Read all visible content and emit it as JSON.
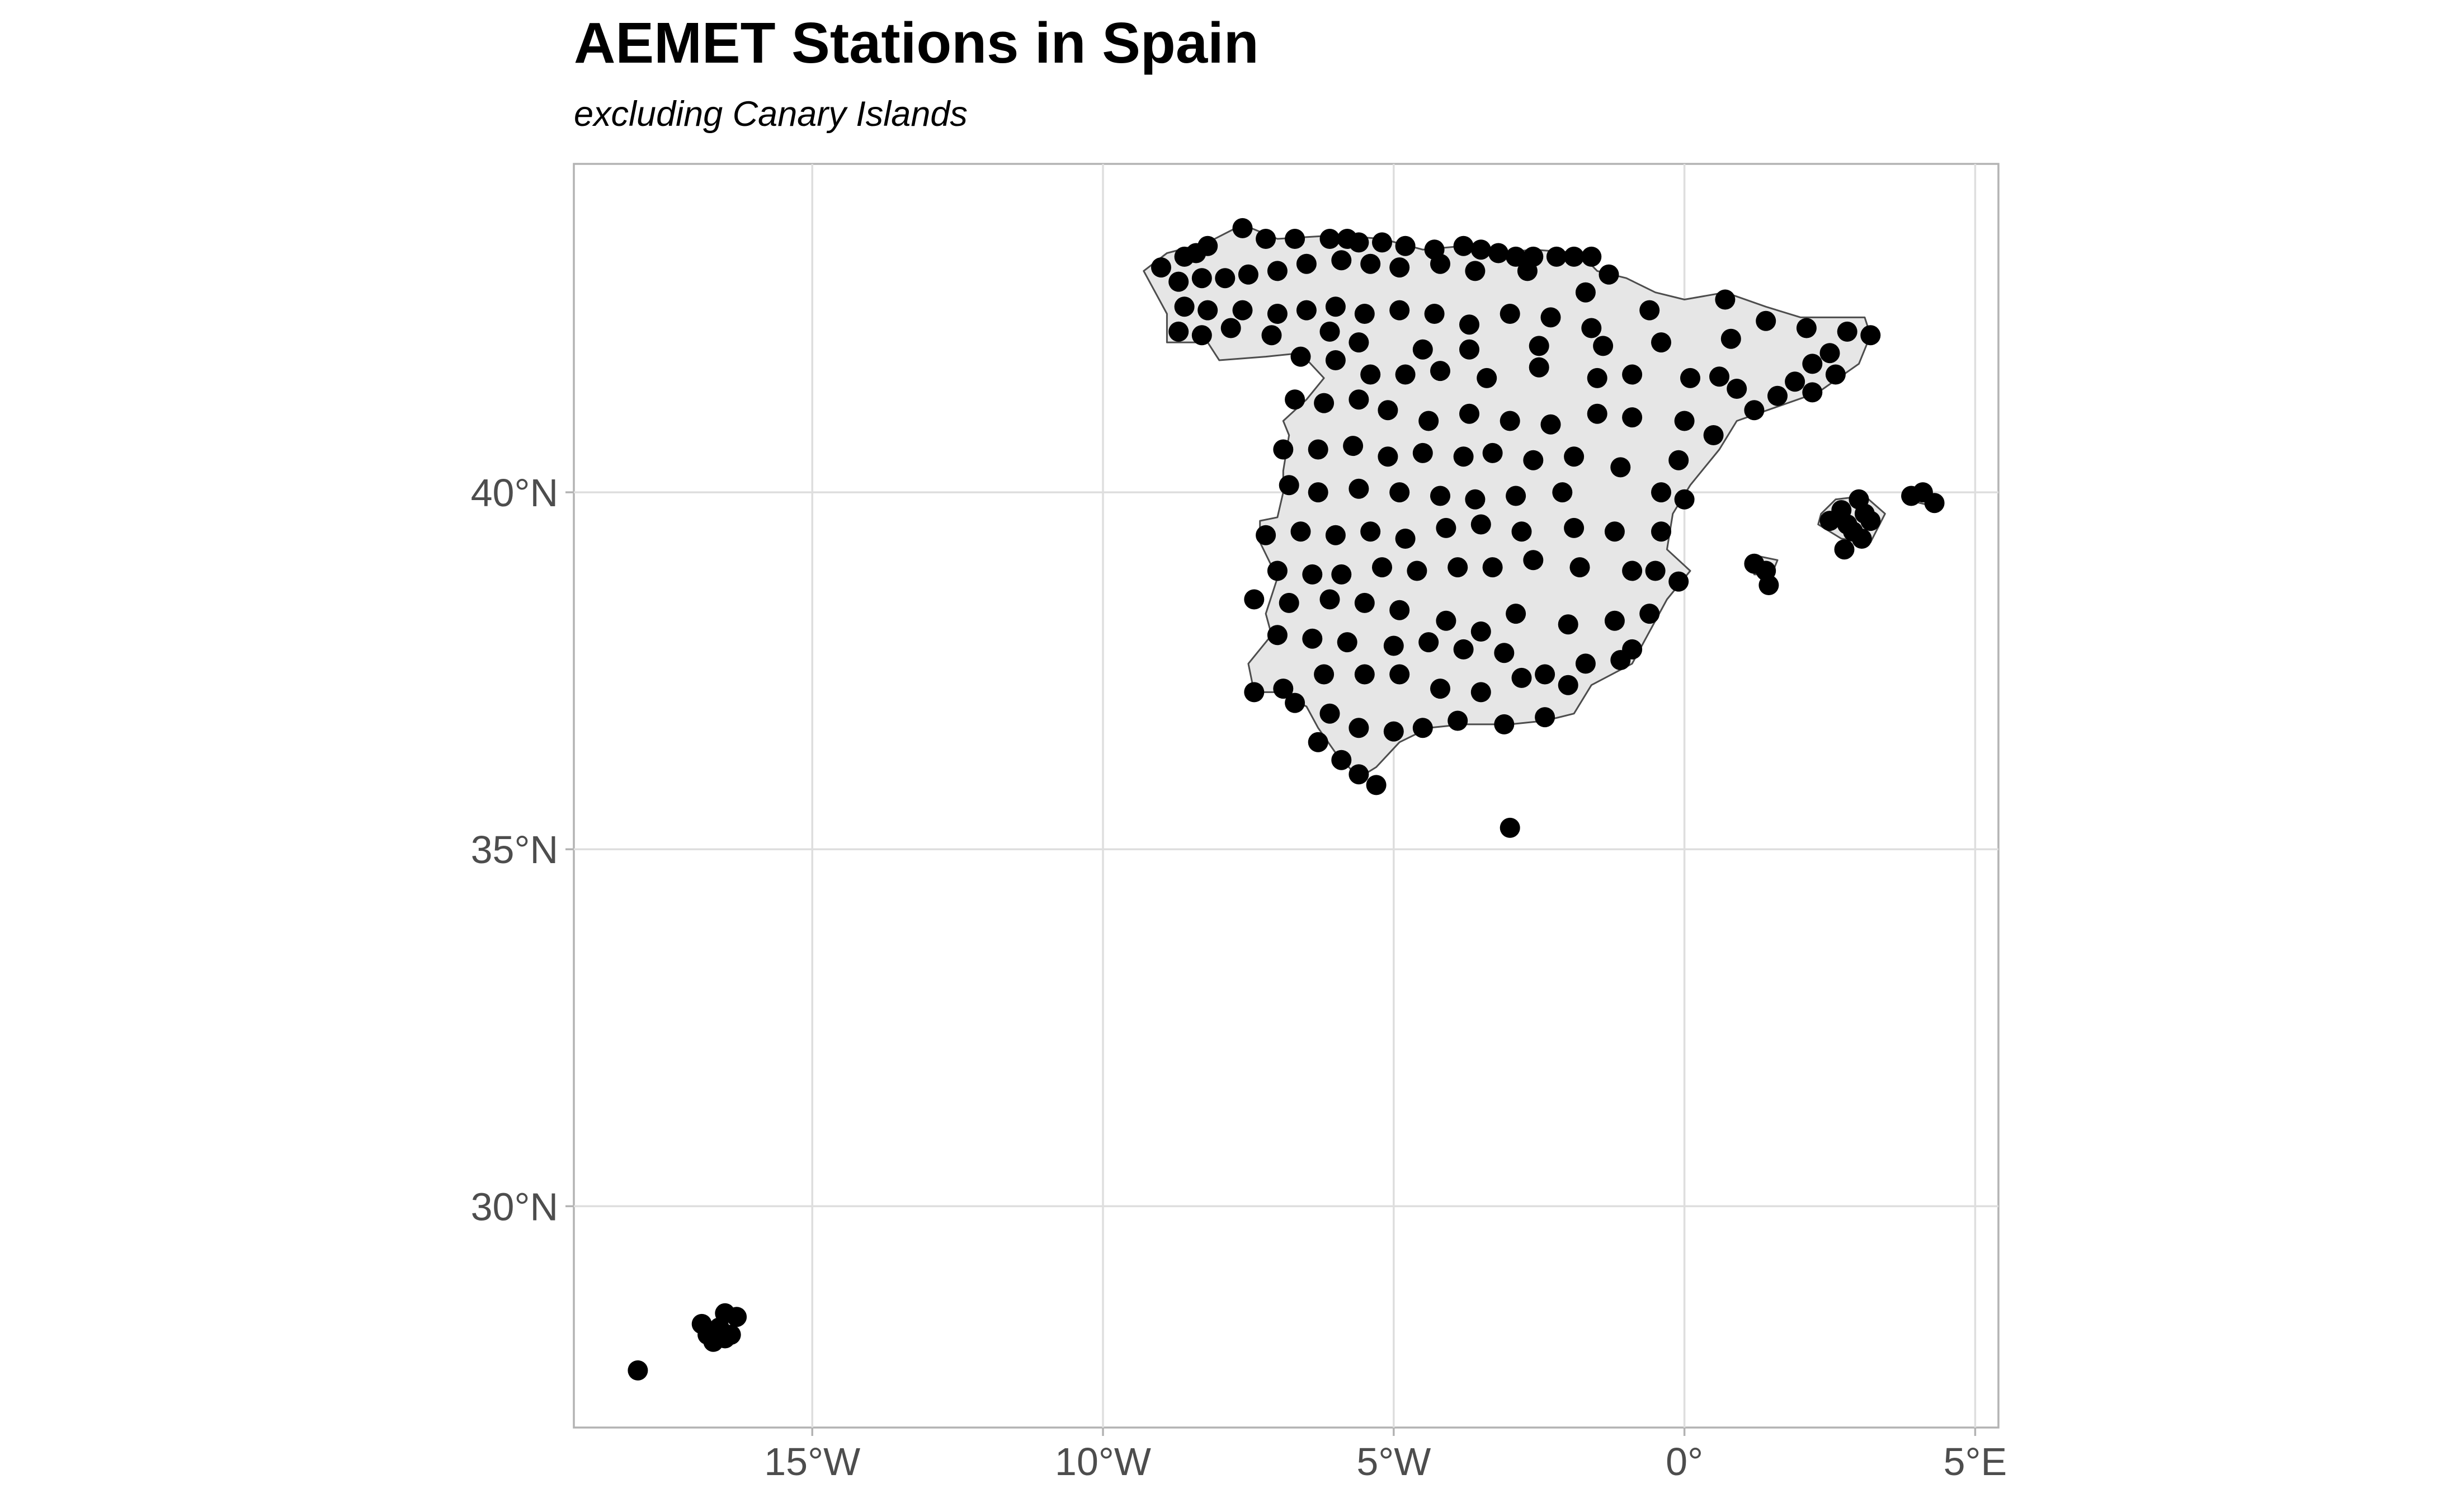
{
  "chart_data": {
    "type": "scatter",
    "title": "AEMET Stations in Spain",
    "subtitle": "excluding Canary Islands",
    "xlabel": "",
    "ylabel": "",
    "x_unit": "degrees longitude",
    "y_unit": "degrees latitude",
    "xlim": [
      -19.1,
      5.4
    ],
    "ylim": [
      26.9,
      44.6
    ],
    "x_ticks": [
      {
        "value": -15,
        "label": "15°W"
      },
      {
        "value": -10,
        "label": "10°W"
      },
      {
        "value": -5,
        "label": "5°W"
      },
      {
        "value": 0,
        "label": "0°"
      },
      {
        "value": 5,
        "label": "5°E"
      }
    ],
    "y_ticks": [
      {
        "value": 30,
        "label": "30°N"
      },
      {
        "value": 35,
        "label": "35°N"
      },
      {
        "value": 40,
        "label": "40°N"
      }
    ],
    "grid": true,
    "legend": "none",
    "colors": {
      "points": "#000000",
      "land_fill": "#e6e6e6",
      "land_outline": "#4d4d4d",
      "grid": "#dedede",
      "panel_border": "#b3b3b3",
      "tick_text": "#4d4d4d"
    },
    "basemap": {
      "mainland": [
        [
          -9.3,
          43.1
        ],
        [
          -8.9,
          43.35
        ],
        [
          -8.2,
          43.5
        ],
        [
          -7.6,
          43.75
        ],
        [
          -7.0,
          43.55
        ],
        [
          -6.0,
          43.6
        ],
        [
          -5.2,
          43.55
        ],
        [
          -4.5,
          43.4
        ],
        [
          -3.8,
          43.45
        ],
        [
          -3.2,
          43.35
        ],
        [
          -2.6,
          43.4
        ],
        [
          -1.8,
          43.35
        ],
        [
          -1.5,
          43.1
        ],
        [
          -1.0,
          43.0
        ],
        [
          -0.5,
          42.8
        ],
        [
          0.0,
          42.7
        ],
        [
          0.7,
          42.8
        ],
        [
          1.4,
          42.6
        ],
        [
          2.0,
          42.45
        ],
        [
          3.1,
          42.45
        ],
        [
          3.2,
          42.2
        ],
        [
          3.0,
          41.8
        ],
        [
          2.3,
          41.4
        ],
        [
          1.6,
          41.2
        ],
        [
          0.9,
          41.0
        ],
        [
          0.6,
          40.6
        ],
        [
          0.1,
          40.1
        ],
        [
          -0.2,
          39.7
        ],
        [
          -0.3,
          39.2
        ],
        [
          0.1,
          38.9
        ],
        [
          -0.3,
          38.5
        ],
        [
          -0.7,
          37.9
        ],
        [
          -0.9,
          37.6
        ],
        [
          -1.6,
          37.3
        ],
        [
          -1.9,
          36.9
        ],
        [
          -2.4,
          36.8
        ],
        [
          -3.0,
          36.75
        ],
        [
          -3.8,
          36.75
        ],
        [
          -4.4,
          36.7
        ],
        [
          -4.9,
          36.5
        ],
        [
          -5.3,
          36.15
        ],
        [
          -5.6,
          36.0
        ],
        [
          -6.0,
          36.35
        ],
        [
          -6.3,
          36.7
        ],
        [
          -6.5,
          37.0
        ],
        [
          -7.0,
          37.2
        ],
        [
          -7.4,
          37.2
        ],
        [
          -7.5,
          37.6
        ],
        [
          -7.1,
          38.0
        ],
        [
          -7.2,
          38.3
        ],
        [
          -7.0,
          38.8
        ],
        [
          -7.3,
          39.3
        ],
        [
          -7.3,
          39.6
        ],
        [
          -7.0,
          39.65
        ],
        [
          -6.9,
          40.0
        ],
        [
          -6.9,
          40.3
        ],
        [
          -6.8,
          40.8
        ],
        [
          -6.9,
          41.0
        ],
        [
          -6.5,
          41.3
        ],
        [
          -6.2,
          41.6
        ],
        [
          -6.6,
          41.95
        ],
        [
          -7.2,
          41.9
        ],
        [
          -8.0,
          41.85
        ],
        [
          -8.2,
          42.1
        ],
        [
          -8.9,
          42.1
        ],
        [
          -8.9,
          42.5
        ],
        [
          -9.1,
          42.8
        ],
        [
          -9.3,
          43.1
        ]
      ],
      "islands": [
        [
          [
            1.2,
            38.85
          ],
          [
            1.5,
            38.85
          ],
          [
            1.6,
            39.05
          ],
          [
            1.3,
            39.1
          ],
          [
            1.2,
            38.95
          ]
        ],
        [
          [
            2.3,
            39.55
          ],
          [
            2.7,
            39.35
          ],
          [
            3.2,
            39.3
          ],
          [
            3.45,
            39.7
          ],
          [
            3.1,
            39.95
          ],
          [
            2.6,
            39.9
          ],
          [
            2.35,
            39.7
          ]
        ],
        [
          [
            3.8,
            39.9
          ],
          [
            4.3,
            39.8
          ],
          [
            4.3,
            39.95
          ],
          [
            3.85,
            40.05
          ]
        ]
      ]
    },
    "stations": [
      [
        -8.4,
        43.35
      ],
      [
        -8.6,
        43.3
      ],
      [
        -9.0,
        43.15
      ],
      [
        -8.2,
        43.45
      ],
      [
        -7.6,
        43.7
      ],
      [
        -7.2,
        43.55
      ],
      [
        -6.7,
        43.55
      ],
      [
        -6.1,
        43.55
      ],
      [
        -5.8,
        43.55
      ],
      [
        -5.6,
        43.5
      ],
      [
        -5.2,
        43.5
      ],
      [
        -4.8,
        43.45
      ],
      [
        -4.3,
        43.4
      ],
      [
        -3.8,
        43.45
      ],
      [
        -3.5,
        43.4
      ],
      [
        -3.2,
        43.35
      ],
      [
        -2.9,
        43.3
      ],
      [
        -2.6,
        43.3
      ],
      [
        -2.2,
        43.3
      ],
      [
        -1.9,
        43.3
      ],
      [
        -1.6,
        43.3
      ],
      [
        -8.7,
        42.95
      ],
      [
        -8.3,
        43.0
      ],
      [
        -7.9,
        43.0
      ],
      [
        -7.5,
        43.05
      ],
      [
        -7.0,
        43.1
      ],
      [
        -6.5,
        43.2
      ],
      [
        -5.9,
        43.25
      ],
      [
        -5.4,
        43.2
      ],
      [
        -4.9,
        43.15
      ],
      [
        -4.2,
        43.2
      ],
      [
        -3.6,
        43.1
      ],
      [
        -2.7,
        43.1
      ],
      [
        -1.7,
        42.8
      ],
      [
        -1.3,
        43.05
      ],
      [
        -8.6,
        42.6
      ],
      [
        -8.2,
        42.55
      ],
      [
        -7.6,
        42.55
      ],
      [
        -7.0,
        42.5
      ],
      [
        -6.5,
        42.55
      ],
      [
        -6.0,
        42.6
      ],
      [
        -5.5,
        42.5
      ],
      [
        -4.9,
        42.55
      ],
      [
        -4.3,
        42.5
      ],
      [
        -3.7,
        42.35
      ],
      [
        -3.0,
        42.5
      ],
      [
        -2.3,
        42.45
      ],
      [
        -1.6,
        42.3
      ],
      [
        -0.6,
        42.55
      ],
      [
        0.7,
        42.7
      ],
      [
        -8.7,
        42.25
      ],
      [
        -8.3,
        42.2
      ],
      [
        -7.8,
        42.3
      ],
      [
        -7.1,
        42.2
      ],
      [
        -6.1,
        42.25
      ],
      [
        -5.6,
        42.1
      ],
      [
        -4.5,
        42.0
      ],
      [
        -3.7,
        42.0
      ],
      [
        -2.5,
        42.05
      ],
      [
        -1.4,
        42.05
      ],
      [
        -0.4,
        42.1
      ],
      [
        0.8,
        42.15
      ],
      [
        1.4,
        42.4
      ],
      [
        2.1,
        42.3
      ],
      [
        2.8,
        42.25
      ],
      [
        3.2,
        42.2
      ],
      [
        2.5,
        41.95
      ],
      [
        2.2,
        41.8
      ],
      [
        1.9,
        41.55
      ],
      [
        1.6,
        41.35
      ],
      [
        2.2,
        41.4
      ],
      [
        2.6,
        41.65
      ],
      [
        1.2,
        41.15
      ],
      [
        0.9,
        41.45
      ],
      [
        0.6,
        41.62
      ],
      [
        -6.6,
        41.9
      ],
      [
        -6.0,
        41.85
      ],
      [
        -5.4,
        41.65
      ],
      [
        -4.8,
        41.65
      ],
      [
        -4.2,
        41.7
      ],
      [
        -3.4,
        41.6
      ],
      [
        -2.5,
        41.75
      ],
      [
        -1.5,
        41.6
      ],
      [
        -0.9,
        41.65
      ],
      [
        0.1,
        41.6
      ],
      [
        -6.7,
        41.3
      ],
      [
        -6.2,
        41.25
      ],
      [
        -5.6,
        41.3
      ],
      [
        -5.1,
        41.15
      ],
      [
        -4.4,
        41.0
      ],
      [
        -3.7,
        41.1
      ],
      [
        -3.0,
        41.0
      ],
      [
        -2.3,
        40.95
      ],
      [
        -1.5,
        41.1
      ],
      [
        -0.9,
        41.05
      ],
      [
        0.0,
        41.0
      ],
      [
        0.5,
        40.8
      ],
      [
        -6.9,
        40.6
      ],
      [
        -6.3,
        40.6
      ],
      [
        -5.7,
        40.65
      ],
      [
        -5.1,
        40.5
      ],
      [
        -4.5,
        40.55
      ],
      [
        -3.8,
        40.5
      ],
      [
        -3.3,
        40.55
      ],
      [
        -2.6,
        40.45
      ],
      [
        -1.9,
        40.5
      ],
      [
        -1.1,
        40.35
      ],
      [
        -0.1,
        40.45
      ],
      [
        -6.8,
        40.1
      ],
      [
        -6.3,
        40.0
      ],
      [
        -5.6,
        40.05
      ],
      [
        -4.9,
        40.0
      ],
      [
        -4.2,
        39.95
      ],
      [
        -3.6,
        39.9
      ],
      [
        -2.9,
        39.95
      ],
      [
        -2.1,
        40.0
      ],
      [
        -0.4,
        40.0
      ],
      [
        0.0,
        39.9
      ],
      [
        -7.2,
        39.4
      ],
      [
        -6.6,
        39.45
      ],
      [
        -6.0,
        39.4
      ],
      [
        -5.4,
        39.45
      ],
      [
        -4.8,
        39.35
      ],
      [
        -4.1,
        39.5
      ],
      [
        -3.5,
        39.55
      ],
      [
        -2.8,
        39.45
      ],
      [
        -1.9,
        39.5
      ],
      [
        -1.2,
        39.45
      ],
      [
        -0.4,
        39.45
      ],
      [
        -0.5,
        38.9
      ],
      [
        -7.0,
        38.9
      ],
      [
        -6.4,
        38.85
      ],
      [
        -5.9,
        38.85
      ],
      [
        -5.2,
        38.95
      ],
      [
        -4.6,
        38.9
      ],
      [
        -3.9,
        38.95
      ],
      [
        -3.3,
        38.95
      ],
      [
        -2.6,
        39.05
      ],
      [
        -1.8,
        38.95
      ],
      [
        -0.9,
        38.9
      ],
      [
        -0.1,
        38.75
      ],
      [
        -7.4,
        38.5
      ],
      [
        -6.8,
        38.45
      ],
      [
        -6.1,
        38.5
      ],
      [
        -5.5,
        38.45
      ],
      [
        -4.9,
        38.35
      ],
      [
        -4.1,
        38.2
      ],
      [
        -3.5,
        38.05
      ],
      [
        -2.9,
        38.3
      ],
      [
        -2.0,
        38.15
      ],
      [
        -1.2,
        38.2
      ],
      [
        -0.6,
        38.3
      ],
      [
        -7.0,
        38.0
      ],
      [
        -6.4,
        37.95
      ],
      [
        -5.8,
        37.9
      ],
      [
        -5.0,
        37.85
      ],
      [
        -4.4,
        37.9
      ],
      [
        -3.8,
        37.8
      ],
      [
        -3.1,
        37.75
      ],
      [
        -2.4,
        37.45
      ],
      [
        -1.7,
        37.6
      ],
      [
        -1.1,
        37.65
      ],
      [
        -0.9,
        37.8
      ],
      [
        -7.4,
        37.2
      ],
      [
        -6.9,
        37.25
      ],
      [
        -6.2,
        37.45
      ],
      [
        -5.5,
        37.45
      ],
      [
        -4.9,
        37.45
      ],
      [
        -4.2,
        37.25
      ],
      [
        -3.5,
        37.2
      ],
      [
        -2.8,
        37.4
      ],
      [
        -2.0,
        37.3
      ],
      [
        -6.7,
        37.05
      ],
      [
        -6.1,
        36.9
      ],
      [
        -5.6,
        36.7
      ],
      [
        -5.0,
        36.65
      ],
      [
        -4.5,
        36.7
      ],
      [
        -3.9,
        36.8
      ],
      [
        -3.1,
        36.75
      ],
      [
        -2.4,
        36.85
      ],
      [
        -6.3,
        36.5
      ],
      [
        -5.9,
        36.25
      ],
      [
        -5.6,
        36.05
      ],
      [
        -5.3,
        35.9
      ],
      [
        -3.0,
        35.3
      ],
      [
        1.4,
        38.9
      ],
      [
        1.45,
        38.7
      ],
      [
        1.2,
        39.0
      ],
      [
        2.5,
        39.6
      ],
      [
        2.7,
        39.75
      ],
      [
        3.0,
        39.9
      ],
      [
        3.1,
        39.7
      ],
      [
        2.9,
        39.45
      ],
      [
        3.2,
        39.6
      ],
      [
        2.8,
        39.55
      ],
      [
        2.75,
        39.2
      ],
      [
        3.05,
        39.35
      ],
      [
        3.9,
        39.95
      ],
      [
        4.1,
        40.0
      ],
      [
        4.3,
        39.85
      ],
      [
        -16.5,
        28.5
      ],
      [
        -16.3,
        28.45
      ],
      [
        -16.6,
        28.3
      ],
      [
        -16.9,
        28.35
      ],
      [
        -16.4,
        28.2
      ],
      [
        -16.7,
        28.1
      ],
      [
        -16.8,
        28.2
      ],
      [
        -16.5,
        28.15
      ],
      [
        -18.0,
        27.7
      ]
    ]
  }
}
